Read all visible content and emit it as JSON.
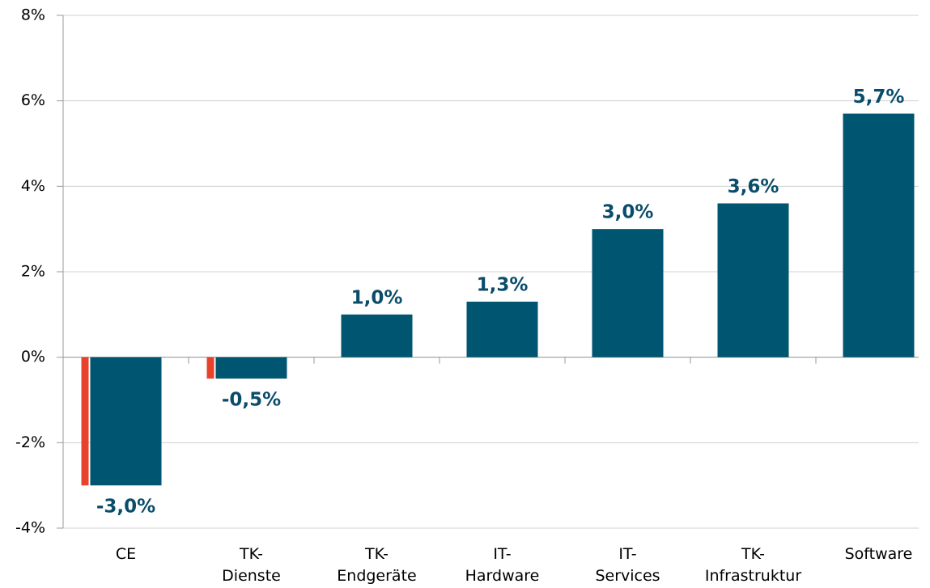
{
  "chart_data": {
    "type": "bar",
    "categories": [
      "CE",
      "TK-\nDienste",
      "TK-\nEndgeräte",
      "IT-\nHardware",
      "IT-\nServices",
      "TK-\nInfrastruktur",
      "Software"
    ],
    "values": [
      -3.0,
      -0.5,
      1.0,
      1.3,
      3.0,
      3.6,
      5.7
    ],
    "value_labels": [
      "-3,0%",
      "-0,5%",
      "1,0%",
      "1,3%",
      "3,0%",
      "3,6%",
      "5,7%"
    ],
    "color": "#005570",
    "negative_accent_color": "#e8412c",
    "ylim": [
      -4,
      8
    ],
    "yticks": [
      {
        "value": -4,
        "label": "-4%"
      },
      {
        "value": -2,
        "label": "-2%"
      },
      {
        "value": 0,
        "label": "0%"
      },
      {
        "value": 2,
        "label": "2%"
      },
      {
        "value": 4,
        "label": "4%"
      },
      {
        "value": 6,
        "label": "6%"
      },
      {
        "value": 8,
        "label": "8%"
      }
    ],
    "grid": true
  }
}
